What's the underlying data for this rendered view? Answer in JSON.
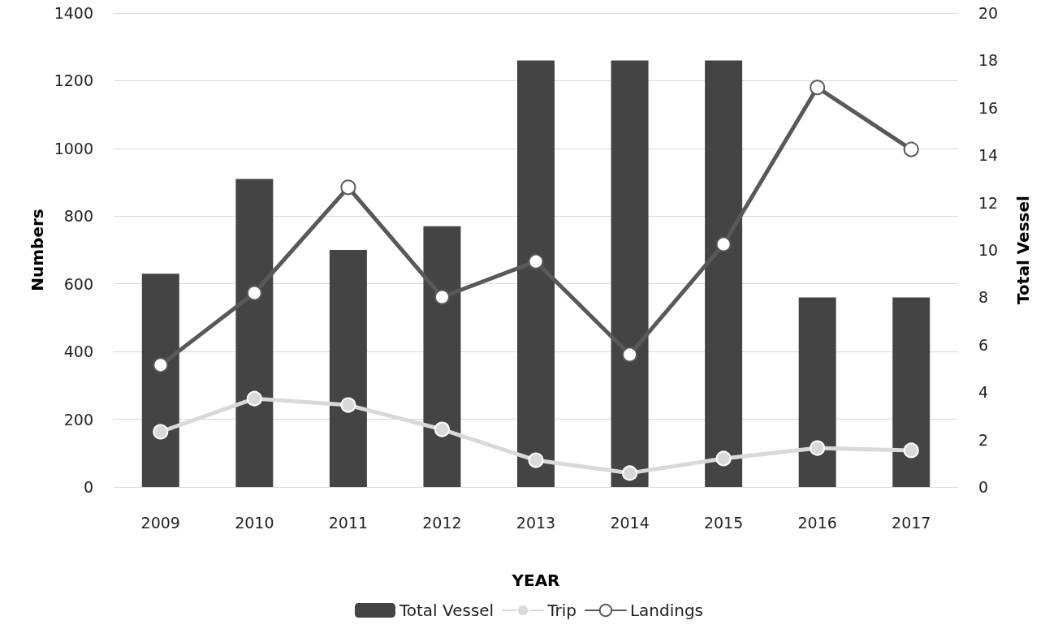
{
  "chart_data": {
    "type": "bar",
    "xlabel": "YEAR",
    "ylabel": "Numbers",
    "y2label": "Total Vessel",
    "categories": [
      "2009",
      "2010",
      "2011",
      "2012",
      "2013",
      "2014",
      "2015",
      "2016",
      "2017"
    ],
    "series": [
      {
        "name": "Total Vessel",
        "axis": "y2",
        "color": "#444444",
        "values": [
          9,
          13,
          10,
          11,
          18,
          18,
          18,
          8,
          8
        ]
      },
      {
        "name": "Trip",
        "type": "line",
        "color": "#d9d9d9",
        "values": [
          163,
          261,
          242,
          170,
          79,
          41,
          84,
          115,
          108
        ]
      },
      {
        "name": "Landings",
        "type": "line",
        "color": "#595959",
        "values": [
          360,
          573,
          885,
          561,
          666,
          391,
          717,
          1180,
          997
        ]
      }
    ],
    "ylim": [
      0,
      1400
    ],
    "yticks": [
      0,
      200,
      400,
      600,
      800,
      1000,
      1200,
      1400
    ],
    "y2lim": [
      0,
      20
    ],
    "y2ticks": [
      0,
      2,
      4,
      6,
      8,
      10,
      12,
      14,
      16,
      18,
      20
    ],
    "grid": "y",
    "legend": "bottom",
    "marker": "circle",
    "line_style": "solid"
  }
}
